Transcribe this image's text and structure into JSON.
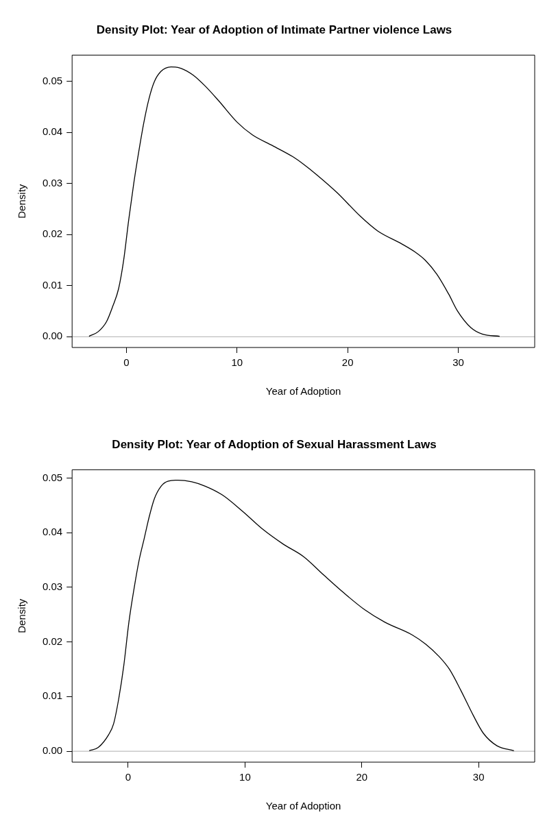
{
  "chart_data": [
    {
      "type": "line",
      "title": "Density Plot: Year of Adoption of Intimate Partner violence Laws",
      "xlabel": "Year of Adoption",
      "ylabel": "Density",
      "xlim": [
        -4.9,
        36.9
      ],
      "ylim": [
        -0.0021,
        0.0551
      ],
      "xticks": [
        0,
        10,
        20,
        30
      ],
      "yticks": [
        {
          "value": 0,
          "label": "0.00"
        },
        {
          "value": 0.01,
          "label": "0.01"
        },
        {
          "value": 0.02,
          "label": "0.02"
        },
        {
          "value": 0.03,
          "label": "0.03"
        },
        {
          "value": 0.04,
          "label": "0.04"
        },
        {
          "value": 0.05,
          "label": "0.05"
        }
      ],
      "grid": false,
      "legend": false,
      "marker": "none",
      "ref_lines": [
        {
          "axis": "y",
          "value": 0,
          "color": "#bebebe"
        }
      ],
      "x": [
        -3.37,
        -2.54,
        -1.78,
        -1.22,
        -0.7,
        -0.24,
        0.21,
        0.67,
        1.13,
        1.59,
        2.05,
        2.51,
        3.12,
        4.04,
        4.96,
        6.03,
        7.1,
        8.33,
        10.0,
        11.39,
        13.2,
        15.06,
        15.98,
        17.2,
        19.04,
        21.18,
        22.71,
        24.86,
        26.08,
        27.0,
        28.07,
        29.14,
        29.91,
        31.13,
        32.2,
        33.73
      ],
      "series": [
        {
          "color": "#000000",
          "values": [
            0.0001,
            0.001,
            0.003,
            0.006,
            0.0094,
            0.015,
            0.0228,
            0.03,
            0.0363,
            0.042,
            0.0466,
            0.0498,
            0.0519,
            0.0528,
            0.0525,
            0.0512,
            0.0491,
            0.0462,
            0.042,
            0.0395,
            0.0374,
            0.0352,
            0.0338,
            0.0317,
            0.0282,
            0.0235,
            0.0207,
            0.0182,
            0.0166,
            0.015,
            0.0122,
            0.0083,
            0.0051,
            0.0018,
            0.0005,
            0.0001
          ]
        }
      ]
    },
    {
      "type": "line",
      "title": "Density Plot: Year of Adoption of Sexual Harassment Laws",
      "xlabel": "Year of Adoption",
      "ylabel": "Density",
      "xlim": [
        -4.8,
        34.8
      ],
      "ylim": [
        -0.002,
        0.0515
      ],
      "xticks": [
        0,
        10,
        20,
        30
      ],
      "yticks": [
        {
          "value": 0,
          "label": "0.00"
        },
        {
          "value": 0.01,
          "label": "0.01"
        },
        {
          "value": 0.02,
          "label": "0.02"
        },
        {
          "value": 0.03,
          "label": "0.03"
        },
        {
          "value": 0.04,
          "label": "0.04"
        },
        {
          "value": 0.05,
          "label": "0.05"
        }
      ],
      "grid": false,
      "legend": false,
      "marker": "none",
      "ref_lines": [
        {
          "axis": "y",
          "value": 0,
          "color": "#bebebe"
        }
      ],
      "x": [
        -3.34,
        -2.56,
        -1.68,
        -1.25,
        -0.81,
        -0.38,
        0.06,
        0.49,
        0.93,
        1.37,
        1.8,
        2.24,
        2.82,
        3.4,
        4.27,
        5.43,
        6.59,
        8.05,
        9.79,
        11.53,
        13.27,
        15.02,
        16.76,
        18.5,
        20.24,
        21.98,
        24.3,
        25.46,
        26.63,
        27.5,
        28.51,
        29.53,
        30.4,
        31.57,
        33.02
      ],
      "series": [
        {
          "color": "#000000",
          "values": [
            0.0001,
            0.0007,
            0.003,
            0.005,
            0.0096,
            0.0156,
            0.0236,
            0.0296,
            0.0349,
            0.0389,
            0.0429,
            0.0462,
            0.0485,
            0.0494,
            0.0496,
            0.0493,
            0.0485,
            0.0469,
            0.0439,
            0.0406,
            0.0379,
            0.0356,
            0.0322,
            0.0289,
            0.0259,
            0.0236,
            0.0213,
            0.0196,
            0.0173,
            0.015,
            0.011,
            0.0066,
            0.0033,
            0.001,
            0.0001
          ]
        }
      ]
    }
  ]
}
